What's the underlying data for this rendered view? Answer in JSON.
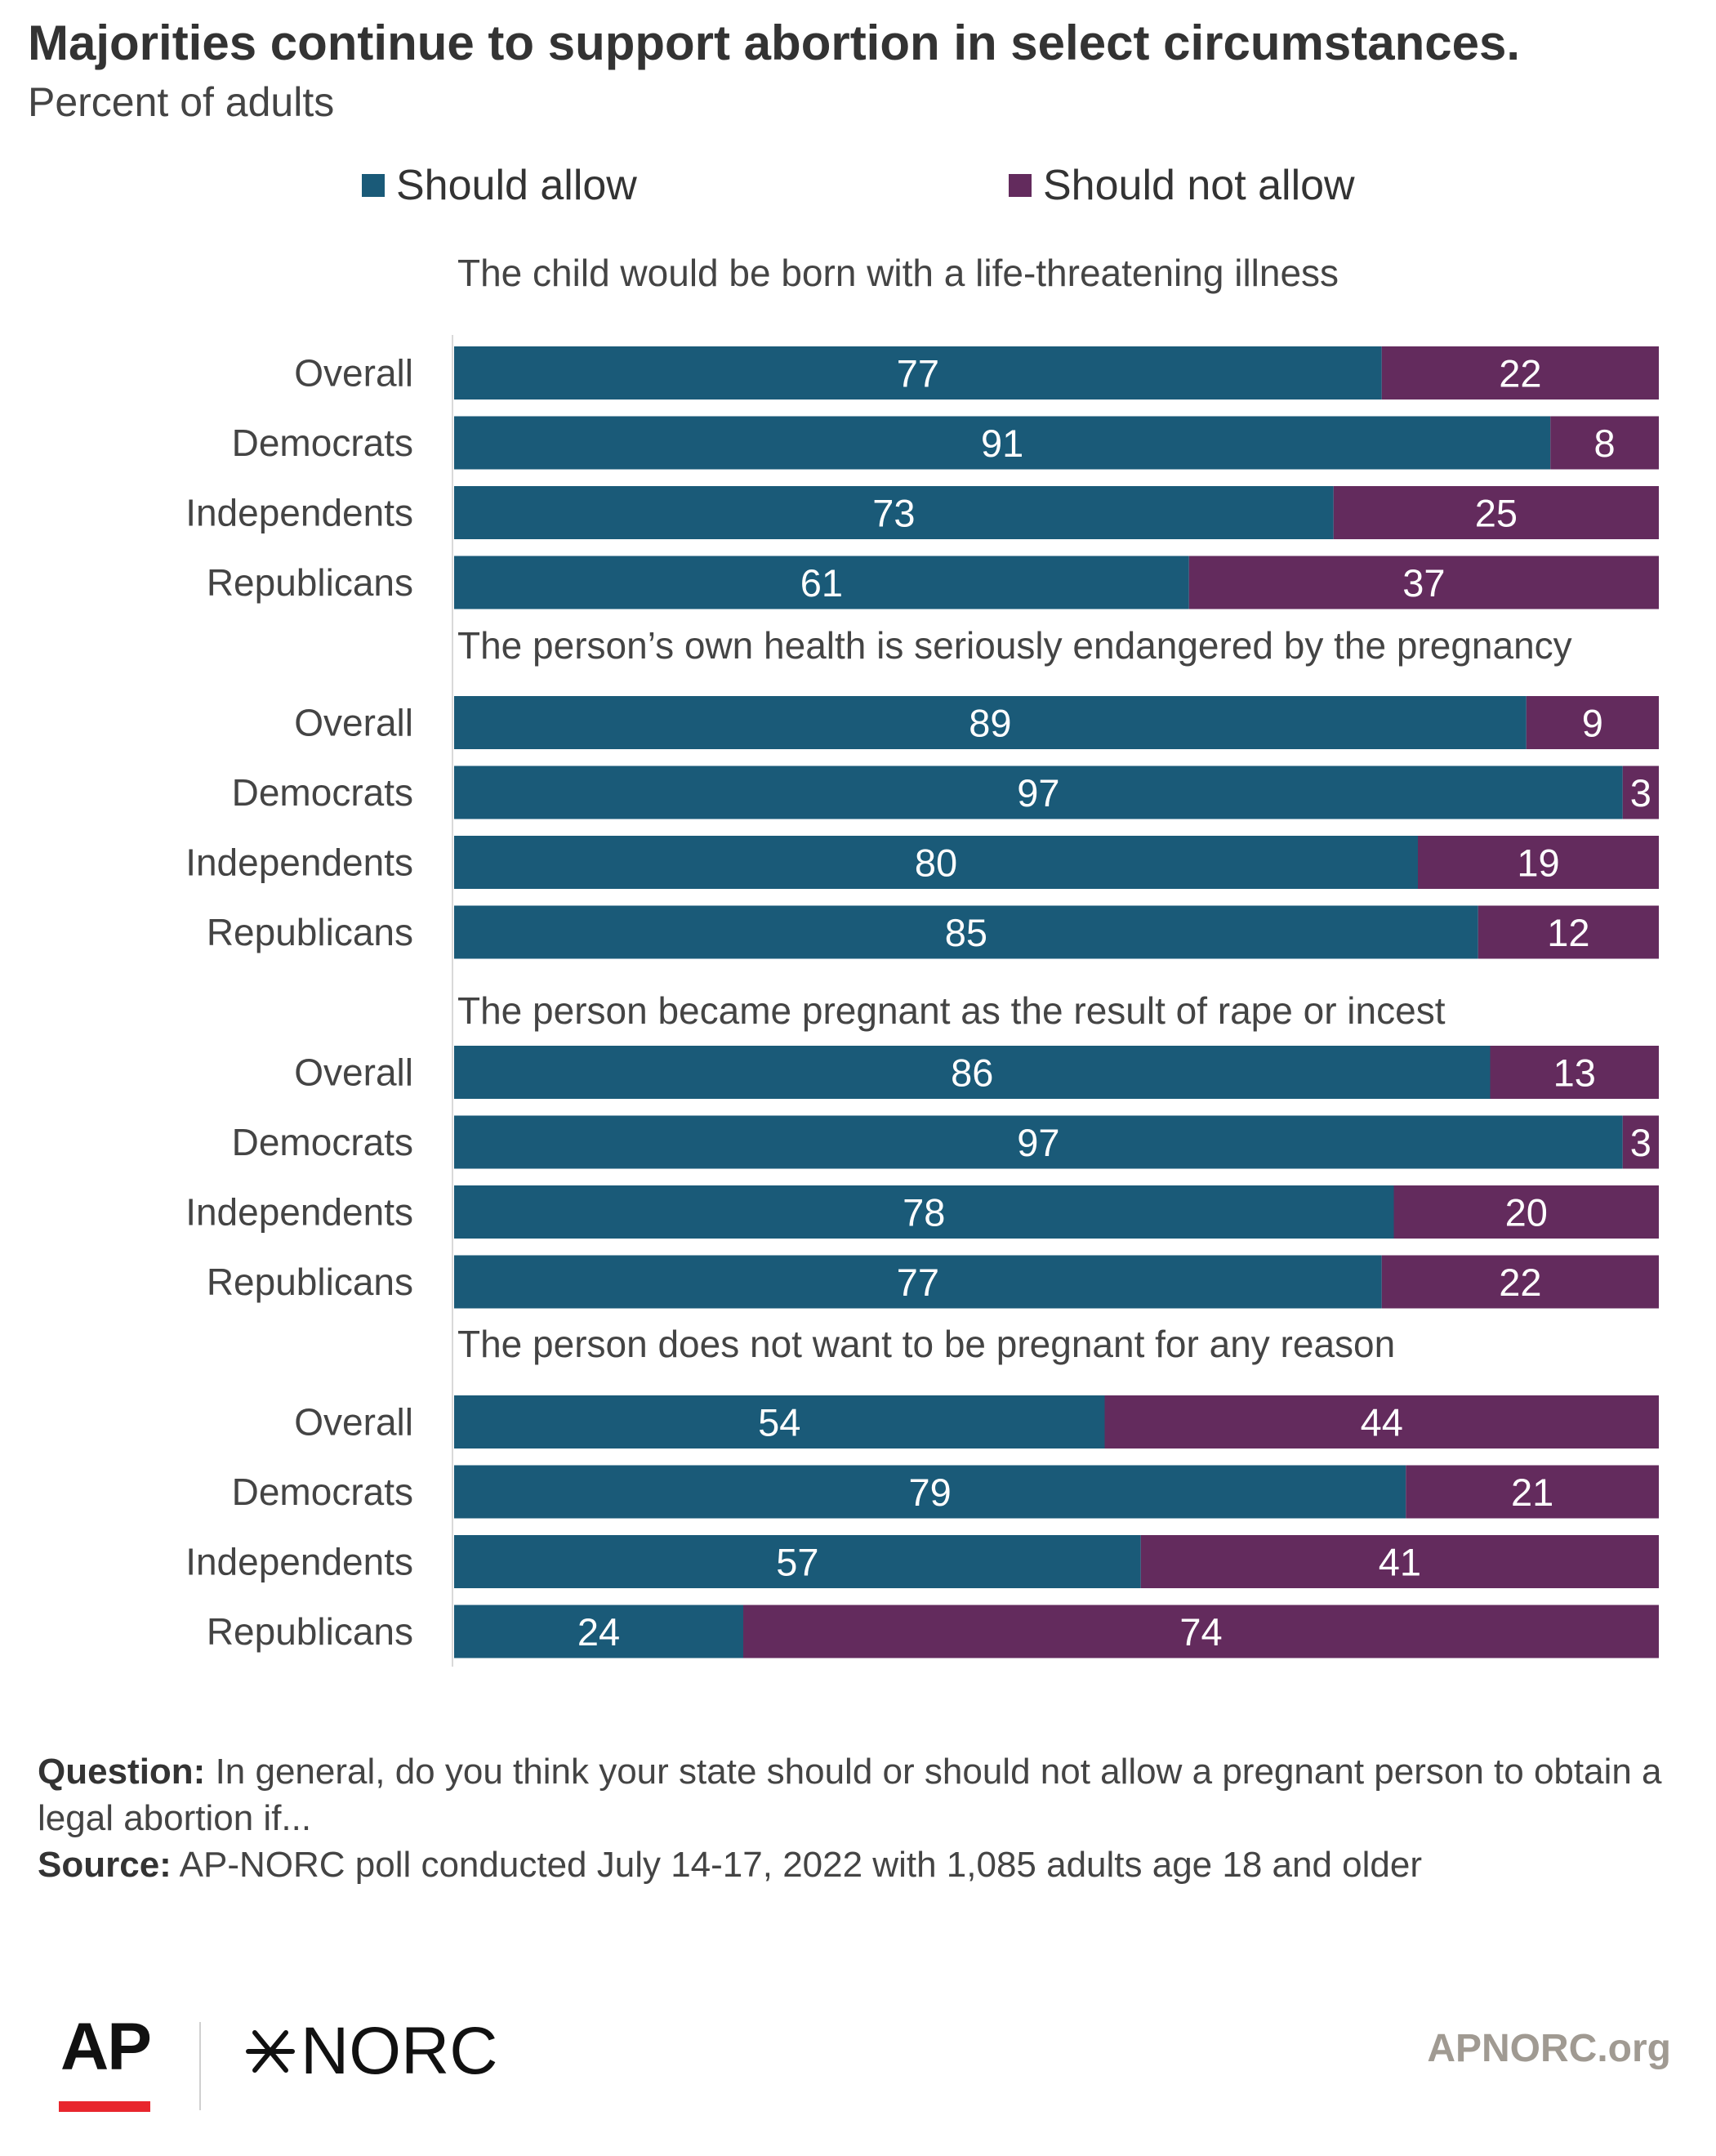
{
  "header": {
    "title": "Majorities continue to support abortion in select circumstances.",
    "subtitle": "Percent of adults"
  },
  "legend": [
    {
      "label": "Should allow",
      "color": "#1a5a78"
    },
    {
      "label": "Should not allow",
      "color": "#632b5d"
    }
  ],
  "chart_data": {
    "type": "bar",
    "orientation": "horizontal",
    "stacked": true,
    "categories": [
      "Overall",
      "Democrats",
      "Independents",
      "Republicans"
    ],
    "xlim": [
      0,
      100
    ],
    "grid": false,
    "legend_position": "top",
    "groups": [
      {
        "title": "The child would be born with a life-threatening illness",
        "series": [
          {
            "name": "Should allow",
            "values": [
              77,
              91,
              73,
              61
            ]
          },
          {
            "name": "Should not allow",
            "values": [
              22,
              8,
              25,
              37
            ]
          }
        ]
      },
      {
        "title": "The person’s own health is seriously endangered by the pregnancy",
        "series": [
          {
            "name": "Should allow",
            "values": [
              89,
              97,
              80,
              85
            ]
          },
          {
            "name": "Should not allow",
            "values": [
              9,
              3,
              19,
              12
            ]
          }
        ]
      },
      {
        "title": "The person became pregnant as the result of rape or incest",
        "series": [
          {
            "name": "Should allow",
            "values": [
              86,
              97,
              78,
              77
            ]
          },
          {
            "name": "Should not allow",
            "values": [
              13,
              3,
              20,
              22
            ]
          }
        ]
      },
      {
        "title": "The person does not want to be pregnant for any reason",
        "series": [
          {
            "name": "Should allow",
            "values": [
              54,
              79,
              57,
              24
            ]
          },
          {
            "name": "Should not allow",
            "values": [
              44,
              21,
              41,
              74
            ]
          }
        ]
      }
    ]
  },
  "footer": {
    "question_label": "Question:",
    "question_text": "In general, do you think your state should or should not allow a pregnant person to obtain a legal abortion if...",
    "source_label": "Source:",
    "source_text": "AP-NORC poll conducted July 14-17, 2022 with 1,085 adults age 18 and older",
    "logo_ap": "AP",
    "logo_norc": "NORC",
    "site": "APNORC.org"
  }
}
